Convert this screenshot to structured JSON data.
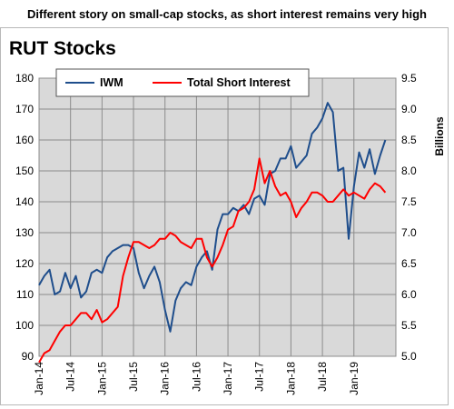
{
  "headline": "Different story on small-cap stocks, as short interest remains very high",
  "chart_data": {
    "type": "line",
    "title": "RUT Stocks",
    "y_right_label": "Billions",
    "ylim_left": [
      90,
      180
    ],
    "ylim_right": [
      5.0,
      9.5
    ],
    "y_ticks_left": [
      "90",
      "100",
      "110",
      "120",
      "130",
      "140",
      "150",
      "160",
      "170",
      "180"
    ],
    "y_ticks_right": [
      "5.0",
      "5.5",
      "6.0",
      "6.5",
      "7.0",
      "7.5",
      "8.0",
      "8.5",
      "9.0",
      "9.5"
    ],
    "x_ticks": [
      "Jan-14",
      "Jul-14",
      "Jan-15",
      "Jul-15",
      "Jan-16",
      "Jul-16",
      "Jan-17",
      "Jul-17",
      "Jan-18",
      "Jul-18",
      "Jan-19"
    ],
    "grid": true,
    "legend_position": "top-left",
    "series": [
      {
        "name": "IWM",
        "axis": "left",
        "color": "#1f4e8c",
        "points": [
          [
            "2014-01",
            113
          ],
          [
            "2014-02",
            116
          ],
          [
            "2014-03",
            118
          ],
          [
            "2014-04",
            110
          ],
          [
            "2014-05",
            111
          ],
          [
            "2014-06",
            117
          ],
          [
            "2014-07",
            112
          ],
          [
            "2014-08",
            116
          ],
          [
            "2014-09",
            109
          ],
          [
            "2014-10",
            111
          ],
          [
            "2014-11",
            117
          ],
          [
            "2014-12",
            118
          ],
          [
            "2015-01",
            117
          ],
          [
            "2015-02",
            122
          ],
          [
            "2015-03",
            124
          ],
          [
            "2015-04",
            125
          ],
          [
            "2015-05",
            126
          ],
          [
            "2015-06",
            126
          ],
          [
            "2015-07",
            125
          ],
          [
            "2015-08",
            117
          ],
          [
            "2015-09",
            112
          ],
          [
            "2015-10",
            116
          ],
          [
            "2015-11",
            119
          ],
          [
            "2015-12",
            114
          ],
          [
            "2016-01",
            105
          ],
          [
            "2016-02",
            98
          ],
          [
            "2016-03",
            108
          ],
          [
            "2016-04",
            112
          ],
          [
            "2016-05",
            114
          ],
          [
            "2016-06",
            113
          ],
          [
            "2016-07",
            119
          ],
          [
            "2016-08",
            122
          ],
          [
            "2016-09",
            124
          ],
          [
            "2016-10",
            118
          ],
          [
            "2016-11",
            131
          ],
          [
            "2016-12",
            136
          ],
          [
            "2017-01",
            136
          ],
          [
            "2017-02",
            138
          ],
          [
            "2017-03",
            137
          ],
          [
            "2017-04",
            139
          ],
          [
            "2017-05",
            136
          ],
          [
            "2017-06",
            141
          ],
          [
            "2017-07",
            142
          ],
          [
            "2017-08",
            139
          ],
          [
            "2017-09",
            149
          ],
          [
            "2017-10",
            150
          ],
          [
            "2017-11",
            154
          ],
          [
            "2017-12",
            154
          ],
          [
            "2018-01",
            158
          ],
          [
            "2018-02",
            151
          ],
          [
            "2018-03",
            153
          ],
          [
            "2018-04",
            155
          ],
          [
            "2018-05",
            162
          ],
          [
            "2018-06",
            164
          ],
          [
            "2018-07",
            167
          ],
          [
            "2018-08",
            172
          ],
          [
            "2018-09",
            169
          ],
          [
            "2018-10",
            150
          ],
          [
            "2018-11",
            151
          ],
          [
            "2018-12",
            128
          ],
          [
            "2019-01",
            145
          ],
          [
            "2019-02",
            156
          ],
          [
            "2019-03",
            151
          ],
          [
            "2019-04",
            157
          ],
          [
            "2019-05",
            149
          ],
          [
            "2019-06",
            155
          ],
          [
            "2019-07",
            160
          ]
        ]
      },
      {
        "name": "Total Short Interest",
        "axis": "right",
        "color": "#ff0000",
        "points": [
          [
            "2014-01",
            4.9
          ],
          [
            "2014-02",
            5.05
          ],
          [
            "2014-03",
            5.1
          ],
          [
            "2014-04",
            5.25
          ],
          [
            "2014-05",
            5.4
          ],
          [
            "2014-06",
            5.5
          ],
          [
            "2014-07",
            5.5
          ],
          [
            "2014-08",
            5.6
          ],
          [
            "2014-09",
            5.7
          ],
          [
            "2014-10",
            5.7
          ],
          [
            "2014-11",
            5.6
          ],
          [
            "2014-12",
            5.75
          ],
          [
            "2015-01",
            5.55
          ],
          [
            "2015-02",
            5.6
          ],
          [
            "2015-03",
            5.7
          ],
          [
            "2015-04",
            5.8
          ],
          [
            "2015-05",
            6.3
          ],
          [
            "2015-06",
            6.6
          ],
          [
            "2015-07",
            6.85
          ],
          [
            "2015-08",
            6.85
          ],
          [
            "2015-09",
            6.8
          ],
          [
            "2015-10",
            6.75
          ],
          [
            "2015-11",
            6.8
          ],
          [
            "2015-12",
            6.9
          ],
          [
            "2016-01",
            6.9
          ],
          [
            "2016-02",
            7.0
          ],
          [
            "2016-03",
            6.95
          ],
          [
            "2016-04",
            6.85
          ],
          [
            "2016-05",
            6.8
          ],
          [
            "2016-06",
            6.75
          ],
          [
            "2016-07",
            6.9
          ],
          [
            "2016-08",
            6.9
          ],
          [
            "2016-09",
            6.6
          ],
          [
            "2016-10",
            6.45
          ],
          [
            "2016-11",
            6.6
          ],
          [
            "2016-12",
            6.8
          ],
          [
            "2017-01",
            7.05
          ],
          [
            "2017-02",
            7.1
          ],
          [
            "2017-03",
            7.35
          ],
          [
            "2017-04",
            7.4
          ],
          [
            "2017-05",
            7.5
          ],
          [
            "2017-06",
            7.7
          ],
          [
            "2017-07",
            8.2
          ],
          [
            "2017-08",
            7.8
          ],
          [
            "2017-09",
            8.0
          ],
          [
            "2017-10",
            7.75
          ],
          [
            "2017-11",
            7.6
          ],
          [
            "2017-12",
            7.65
          ],
          [
            "2018-01",
            7.5
          ],
          [
            "2018-02",
            7.25
          ],
          [
            "2018-03",
            7.4
          ],
          [
            "2018-04",
            7.5
          ],
          [
            "2018-05",
            7.65
          ],
          [
            "2018-06",
            7.65
          ],
          [
            "2018-07",
            7.6
          ],
          [
            "2018-08",
            7.5
          ],
          [
            "2018-09",
            7.5
          ],
          [
            "2018-10",
            7.6
          ],
          [
            "2018-11",
            7.7
          ],
          [
            "2018-12",
            7.6
          ],
          [
            "2019-01",
            7.65
          ],
          [
            "2019-02",
            7.6
          ],
          [
            "2019-03",
            7.55
          ],
          [
            "2019-04",
            7.7
          ],
          [
            "2019-05",
            7.8
          ],
          [
            "2019-06",
            7.75
          ],
          [
            "2019-07",
            7.65
          ]
        ]
      }
    ]
  }
}
